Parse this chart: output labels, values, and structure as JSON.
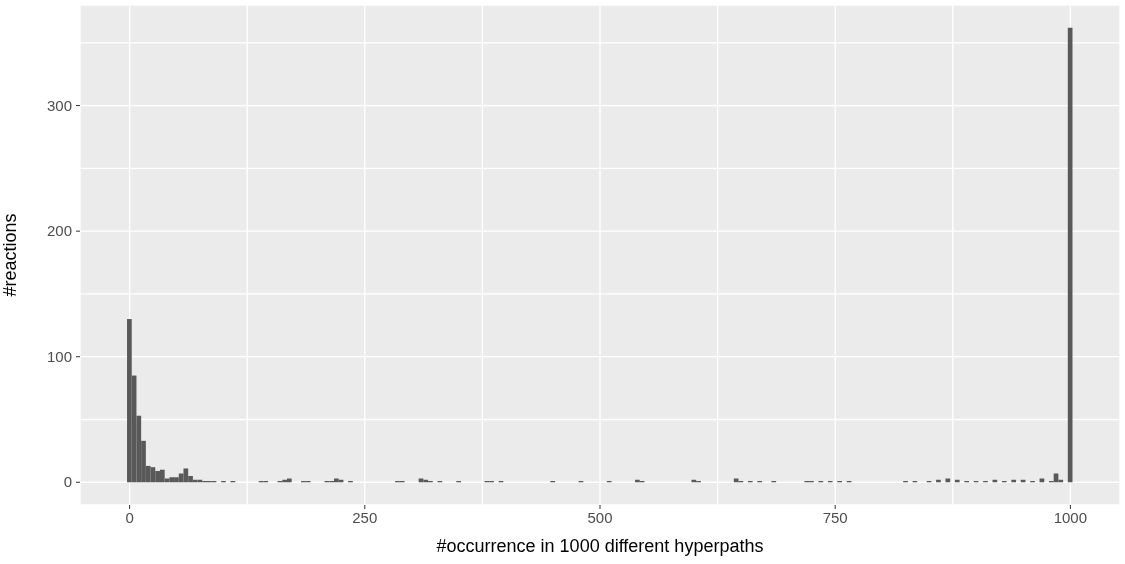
{
  "chart_data": {
    "type": "histogram",
    "xlabel": "#occurrence in 1000 different hyperpaths",
    "ylabel": "#reactions",
    "color": "#595959",
    "bins": [
      -2.5,
      2.5,
      7.5,
      12.5,
      17.5,
      22.5,
      27.5,
      32.5,
      37.5,
      42.5,
      47.5,
      52.5,
      57.5,
      62.5,
      67.5,
      72.5,
      77.5,
      82.5,
      87.5,
      92.5,
      97.5,
      102.5,
      107.5,
      112.5,
      117.5,
      122.5,
      127.5,
      132.5,
      137.5,
      142.5,
      147.5,
      152.5,
      157.5,
      162.5,
      167.5,
      172.5,
      177.5,
      182.5,
      187.5,
      192.5,
      197.5,
      202.5,
      207.5,
      212.5,
      217.5,
      222.5,
      227.5,
      232.5,
      237.5,
      242.5,
      247.5,
      252.5,
      257.5,
      262.5,
      267.5,
      272.5,
      277.5,
      282.5,
      287.5,
      292.5,
      297.5,
      302.5,
      307.5,
      312.5,
      317.5,
      322.5,
      327.5,
      332.5,
      337.5,
      342.5,
      347.5,
      352.5,
      357.5,
      362.5,
      367.5,
      372.5,
      377.5,
      382.5,
      387.5,
      392.5,
      397.5,
      402.5,
      407.5,
      412.5,
      417.5,
      422.5,
      427.5,
      432.5,
      437.5,
      442.5,
      447.5,
      452.5,
      457.5,
      462.5,
      467.5,
      472.5,
      477.5,
      482.5,
      487.5,
      492.5,
      497.5,
      502.5,
      507.5,
      512.5,
      517.5,
      522.5,
      527.5,
      532.5,
      537.5,
      542.5,
      547.5,
      552.5,
      557.5,
      562.5,
      567.5,
      572.5,
      577.5,
      582.5,
      587.5,
      592.5,
      597.5,
      602.5,
      607.5,
      612.5,
      617.5,
      622.5,
      627.5,
      632.5,
      637.5,
      642.5,
      647.5,
      652.5,
      657.5,
      662.5,
      667.5,
      672.5,
      677.5,
      682.5,
      687.5,
      692.5,
      697.5,
      702.5,
      707.5,
      712.5,
      717.5,
      722.5,
      727.5,
      732.5,
      737.5,
      742.5,
      747.5,
      752.5,
      757.5,
      762.5,
      767.5,
      772.5,
      777.5,
      782.5,
      787.5,
      792.5,
      797.5,
      802.5,
      807.5,
      812.5,
      817.5,
      822.5,
      827.5,
      832.5,
      837.5,
      842.5,
      847.5,
      852.5,
      857.5,
      862.5,
      867.5,
      872.5,
      877.5,
      882.5,
      887.5,
      892.5,
      897.5,
      902.5,
      907.5,
      912.5,
      917.5,
      922.5,
      927.5,
      932.5,
      937.5,
      942.5,
      947.5,
      952.5,
      957.5,
      962.5,
      967.5,
      972.5,
      977.5,
      982.5,
      987.5,
      992.5,
      997.5,
      1002.5
    ],
    "values": [
      130,
      85,
      53,
      33,
      13,
      12,
      9,
      10,
      3,
      4,
      4,
      7,
      11,
      5,
      2,
      2,
      1,
      1,
      1,
      null,
      1,
      null,
      1,
      null,
      null,
      null,
      null,
      null,
      1,
      1,
      null,
      null,
      1,
      2,
      3,
      null,
      null,
      1,
      1,
      null,
      null,
      null,
      1,
      1,
      3,
      2,
      null,
      1,
      null,
      null,
      null,
      null,
      null,
      null,
      null,
      null,
      null,
      1,
      1,
      null,
      null,
      null,
      3,
      2,
      1,
      null,
      1,
      null,
      null,
      null,
      1,
      null,
      null,
      null,
      null,
      null,
      1,
      1,
      null,
      1,
      null,
      null,
      null,
      null,
      null,
      null,
      null,
      null,
      null,
      null,
      1,
      null,
      null,
      null,
      null,
      null,
      1,
      null,
      null,
      null,
      null,
      null,
      1,
      null,
      null,
      null,
      null,
      null,
      2,
      1,
      null,
      null,
      null,
      null,
      null,
      null,
      null,
      null,
      null,
      null,
      2,
      1,
      null,
      null,
      null,
      null,
      null,
      null,
      null,
      3,
      1,
      null,
      1,
      null,
      1,
      null,
      null,
      1,
      null,
      null,
      null,
      null,
      null,
      null,
      1,
      1,
      null,
      1,
      null,
      1,
      null,
      1,
      null,
      1,
      null,
      null,
      null,
      null,
      null,
      null,
      null,
      null,
      null,
      null,
      null,
      1,
      null,
      1,
      null,
      null,
      1,
      null,
      2,
      null,
      3,
      null,
      2,
      null,
      1,
      null,
      1,
      null,
      1,
      null,
      2,
      null,
      1,
      null,
      2,
      null,
      2,
      null,
      1,
      null,
      3,
      null,
      1,
      7,
      2,
      null,
      362
    ],
    "xlim": [
      -52.75,
      1052.75
    ],
    "xticks": [
      0,
      {
        "value": 125,
        "label": null
      },
      250,
      {
        "value": 375,
        "label": null
      },
      500,
      {
        "value": 625,
        "label": null
      },
      750,
      {
        "value": 875,
        "label": null
      },
      1000
    ],
    "ylim": [
      -18.1,
      380.1
    ],
    "yticks": [
      0,
      {
        "value": 50,
        "label": null
      },
      100,
      {
        "value": 150,
        "label": null
      },
      200,
      {
        "value": 250,
        "label": null
      },
      300,
      {
        "value": 350,
        "label": null
      }
    ],
    "grid": true
  }
}
